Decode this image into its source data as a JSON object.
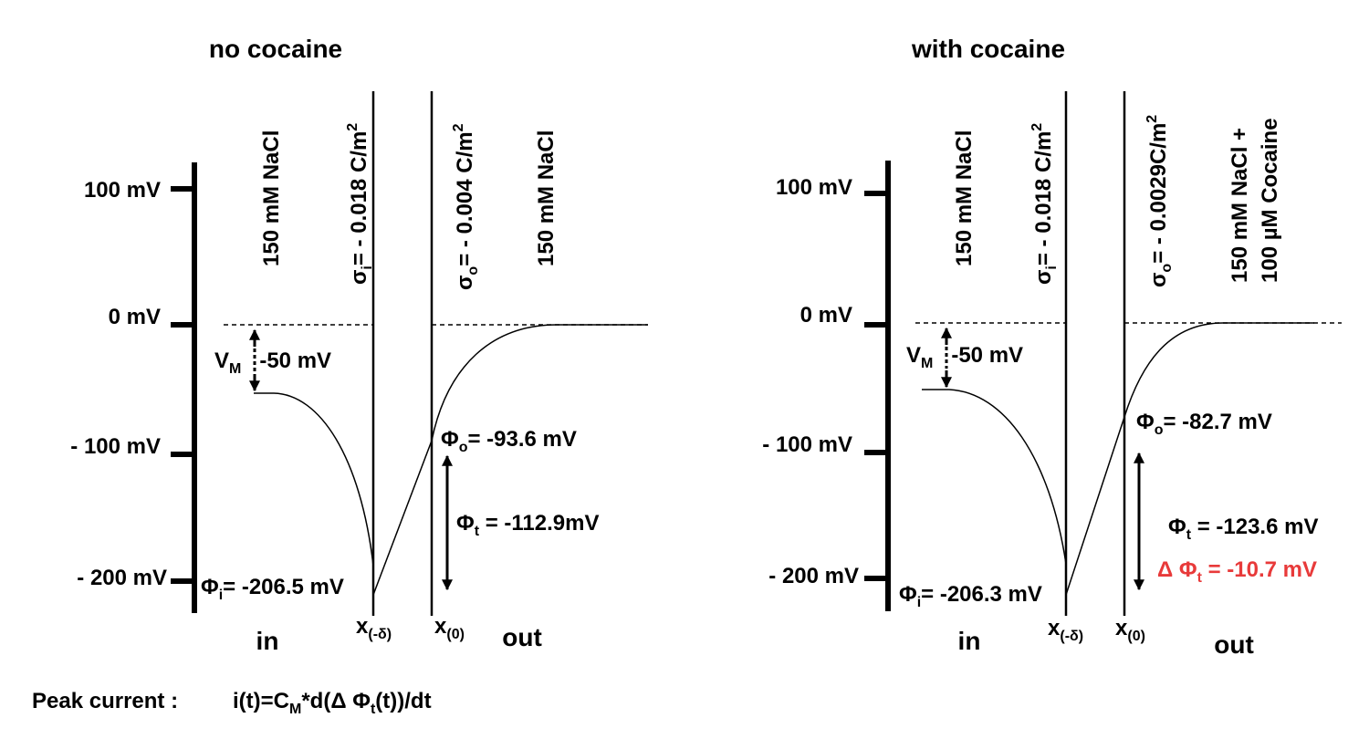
{
  "panels": [
    {
      "title": "no cocaine",
      "axis_labels": [
        "100 mV",
        "0 mV",
        "- 100 mV",
        "- 200 mV"
      ],
      "inside_solution": "150 mM NaCl",
      "sigma_i": [
        "σ",
        "i",
        "= - 0.018 C/m",
        "2"
      ],
      "sigma_o": [
        "σ",
        "o",
        "= - 0.004 C/m",
        "2"
      ],
      "outside_solution": [
        "150 mM NaCl"
      ],
      "vm": [
        "V",
        "M",
        "-50 mV"
      ],
      "phi_o": [
        "Φ",
        "o",
        "= -93.6 mV"
      ],
      "phi_t": [
        "Φ",
        "t",
        " = -112.9mV"
      ],
      "phi_i": [
        "Φ",
        "i",
        "= -206.5 mV"
      ],
      "x_minus_delta": [
        "x",
        "(-δ)"
      ],
      "x_zero": [
        "x",
        "(0)"
      ],
      "in": "in",
      "out": "out"
    },
    {
      "title": "with cocaine",
      "axis_labels": [
        "100 mV",
        "0 mV",
        "- 100 mV",
        "- 200 mV"
      ],
      "inside_solution": "150 mM NaCl",
      "sigma_i": [
        "σ",
        "i",
        "= - 0.018 C/m",
        "2"
      ],
      "sigma_o": [
        "σ",
        "o",
        "= - 0.0029C/m",
        "2"
      ],
      "outside_solution": [
        "150 mM NaCl +",
        "100 µM Cocaine"
      ],
      "vm": [
        "V",
        "M",
        "-50 mV"
      ],
      "phi_o": [
        "Φ",
        "o",
        "= -82.7 mV"
      ],
      "phi_t": [
        "Φ",
        "t",
        " = -123.6 mV"
      ],
      "delta_phi_t": [
        "Δ Φ",
        "t",
        " = -10.7 mV"
      ],
      "phi_i": [
        "Φ",
        "i",
        "= -206.3 mV"
      ],
      "x_minus_delta": [
        "x",
        "(-δ)"
      ],
      "x_zero": [
        "x",
        "(0)"
      ],
      "in": "in",
      "out": "out"
    }
  ],
  "footer": {
    "label": "Peak current :",
    "formula": [
      "i(t)=C",
      "M",
      "*d(Δ Φ",
      "t",
      "(t))/dt"
    ]
  }
}
